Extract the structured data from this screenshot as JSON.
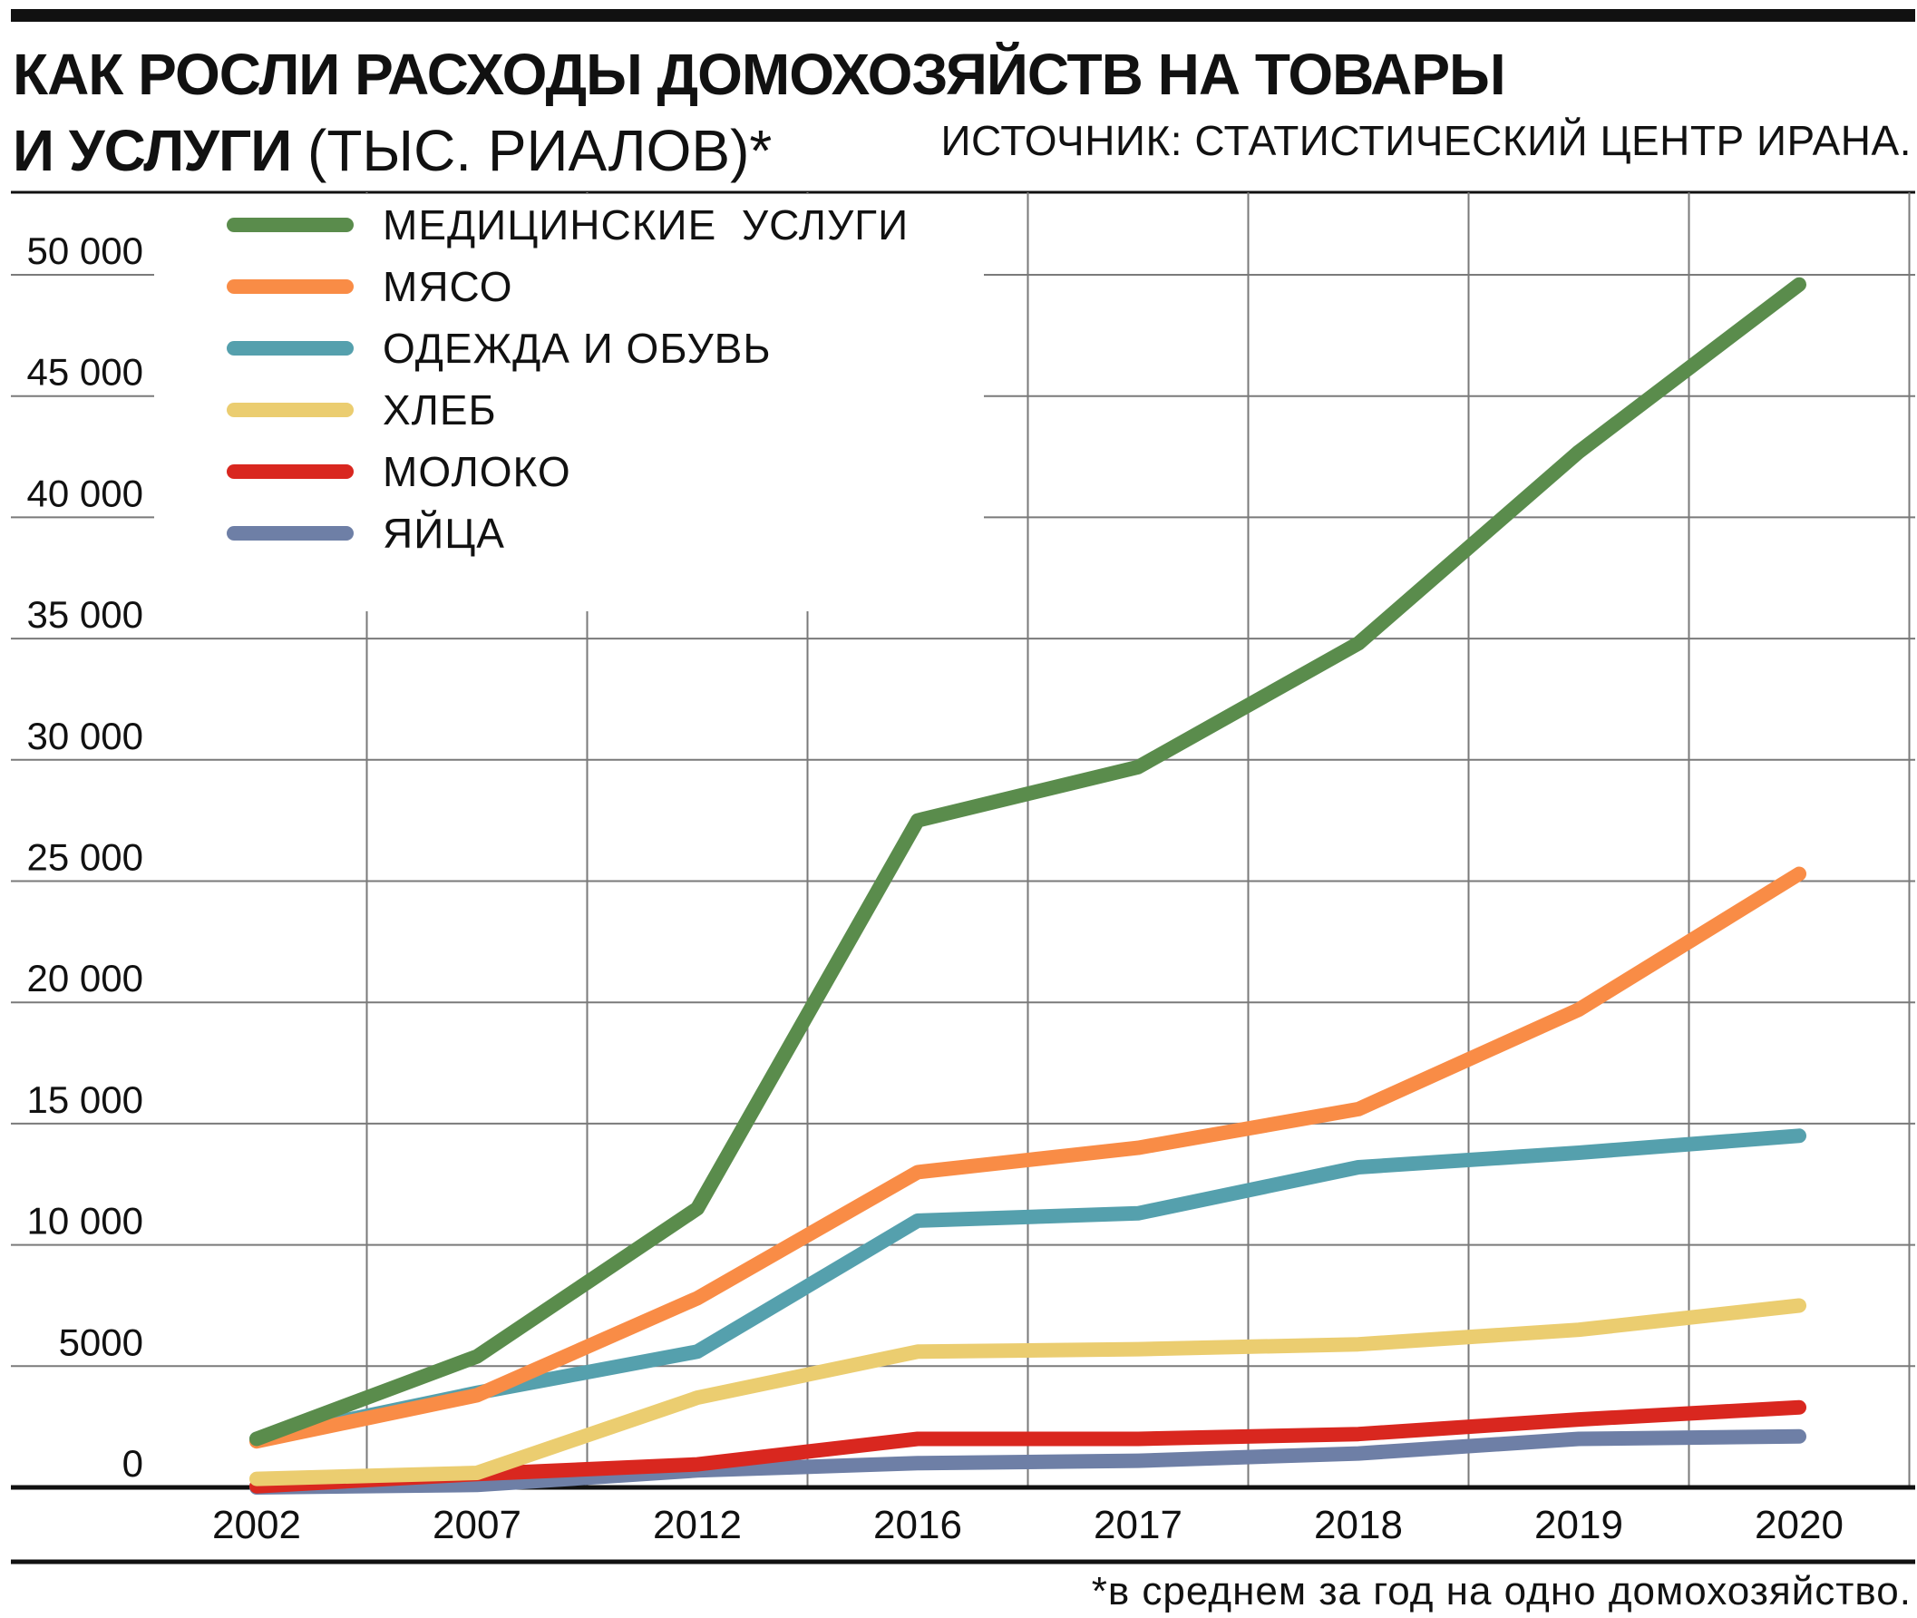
{
  "header": {
    "title_bold_line1": "КАК РОСЛИ РАСХОДЫ ДОМОХОЗЯЙСТВ НА ТОВАРЫ",
    "title_bold_line2": "И УСЛУГИ",
    "title_light": " (ТЫС. РИАЛОВ)*",
    "source": "ИСТОЧНИК: СТАТИСТИЧЕСКИЙ ЦЕНТР ИРАНА."
  },
  "footnote": "*в среднем за год на одно домохозяйство.",
  "chart_data": {
    "type": "line",
    "title": "КАК РОСЛИ РАСХОДЫ ДОМОХОЗЯЙСТВ НА ТОВАРЫ И УСЛУГИ (ТЫС. РИАЛОВ)*",
    "x": [
      "2002",
      "2007",
      "2012",
      "2016",
      "2017",
      "2018",
      "2019",
      "2020"
    ],
    "ylim": [
      0,
      50000
    ],
    "yticks": [
      0,
      5000,
      10000,
      15000,
      20000,
      25000,
      30000,
      35000,
      40000,
      45000,
      50000
    ],
    "ytick_labels": [
      "0",
      "5000",
      "10 000",
      "15 000",
      "20 000",
      "25 000",
      "30 000",
      "35 000",
      "40 000",
      "45 000",
      "50 000"
    ],
    "grid": true,
    "legend_position": "top-left",
    "series": [
      {
        "name": "МЕДИЦИНСКИЕ  УСЛУГИ",
        "color": "#5a8c4c",
        "values": [
          2000,
          5400,
          11500,
          27500,
          29700,
          34800,
          42700,
          49600
        ]
      },
      {
        "name": "МЯСО",
        "color": "#f98c46",
        "values": [
          1900,
          3800,
          7800,
          13000,
          14000,
          15600,
          19700,
          25300
        ]
      },
      {
        "name": "ОДЕЖДА И ОБУВЬ",
        "color": "#55a0ad",
        "values": [
          2000,
          3900,
          5600,
          11000,
          11300,
          13200,
          13800,
          14500
        ]
      },
      {
        "name": "ХЛЕБ",
        "color": "#ebcd70",
        "values": [
          350,
          600,
          3700,
          5600,
          5700,
          5900,
          6500,
          7500
        ]
      },
      {
        "name": "МОЛОКО",
        "color": "#d9271f",
        "values": [
          50,
          550,
          950,
          2000,
          2000,
          2200,
          2800,
          3300
        ]
      },
      {
        "name": "ЯЙЦА",
        "color": "#6e7fa6",
        "values": [
          0,
          100,
          700,
          1000,
          1100,
          1400,
          2000,
          2100
        ]
      }
    ]
  }
}
